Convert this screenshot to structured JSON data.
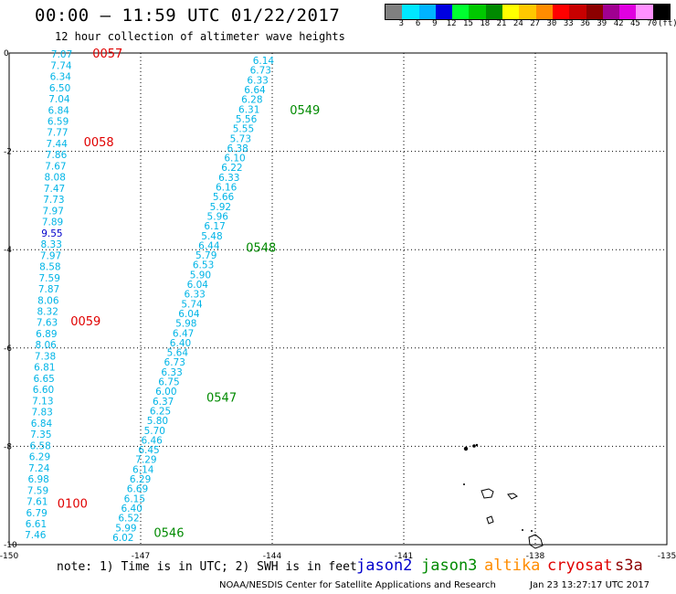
{
  "header": {
    "title": "00:00 – 11:59 UTC 01/22/2017",
    "subtitle": "12 hour collection of altimeter wave heights"
  },
  "color_legend": {
    "colors": [
      "#808080",
      "#00e8ff",
      "#00b4ff",
      "#0000e0",
      "#00ff30",
      "#00c800",
      "#008a00",
      "#ffff00",
      "#ffc800",
      "#ff8c00",
      "#ff0000",
      "#c80000",
      "#8c0000",
      "#a00090",
      "#e000e0",
      "#ff90ff",
      "#000000"
    ],
    "labels": [
      "3",
      "6",
      "9",
      "12",
      "15",
      "18",
      "21",
      "24",
      "27",
      "30",
      "33",
      "36",
      "39",
      "42",
      "45",
      "70",
      "(ft)"
    ]
  },
  "footer": {
    "note": "note: 1) Time is in UTC; 2) SWH is in feet",
    "missions": [
      {
        "name": "jason2",
        "color": "#0000cc"
      },
      {
        "name": "jason3",
        "color": "#008a00"
      },
      {
        "name": "altika",
        "color": "#ff8c00"
      },
      {
        "name": "cryosat",
        "color": "#e00000"
      },
      {
        "name": "s3a",
        "color": "#8c0000"
      }
    ],
    "credit": "NOAA/NESDIS Center for Satellite Applications and Research",
    "timestamp": "Jan 23 13:27:17 UTC 2017"
  },
  "chart_data": {
    "type": "scatter",
    "xlim": [
      -150,
      -135
    ],
    "ylim": [
      -10,
      0
    ],
    "x_ticks": [
      "-150",
      "-147",
      "-144",
      "-141",
      "-138",
      "-135"
    ],
    "y_ticks": [
      "0",
      "-2",
      "-4",
      "-6",
      "-8",
      "-10"
    ],
    "grid": true,
    "tracks": [
      {
        "color": "#00b4e6",
        "start": [
          -148.8,
          -0.02
        ],
        "end": [
          -149.4,
          -9.8
        ],
        "values": [
          "7.07",
          "7.74",
          "6.34",
          "6.50",
          "7.04",
          "6.84",
          "6.59",
          "7.77",
          "7.44",
          "7.86",
          "7.67",
          "8.08",
          "7.47",
          "7.73",
          "7.97",
          "7.89",
          "9.55",
          "8.33",
          "7.97",
          "8.58",
          "7.59",
          "7.87",
          "8.06",
          "8.32",
          "7.63",
          "6.89",
          "8.06",
          "7.38",
          "6.81",
          "6.65",
          "6.60",
          "7.13",
          "7.83",
          "6.84",
          "7.35",
          "6.58",
          "6.29",
          "7.24",
          "6.98",
          "7.59",
          "7.61",
          "6.79",
          "6.61",
          "7.46"
        ],
        "value_colors": {
          "16": "#0000cc"
        },
        "time_labels": [
          {
            "text": "0057",
            "x": -148.1,
            "y": 0.0,
            "color": "#e00000"
          },
          {
            "text": "0058",
            "x": -148.3,
            "y": -1.8,
            "color": "#e00000"
          },
          {
            "text": "0059",
            "x": -148.6,
            "y": -5.45,
            "color": "#e00000"
          },
          {
            "text": "0100",
            "x": -148.9,
            "y": -9.15,
            "color": "#e00000"
          }
        ]
      },
      {
        "color": "#00b4e6",
        "start": [
          -144.2,
          -0.15
        ],
        "end": [
          -147.4,
          -9.85
        ],
        "values": [
          "6.14",
          "6.73",
          "6.33",
          "6.64",
          "6.28",
          "6.31",
          "5.56",
          "5.55",
          "5.73",
          "6.38",
          "6.10",
          "6.22",
          "6.33",
          "6.16",
          "5.66",
          "5.92",
          "5.96",
          "6.17",
          "5.48",
          "6.44",
          "5.79",
          "6.53",
          "5.90",
          "6.04",
          "6.33",
          "5.74",
          "6.04",
          "5.98",
          "6.47",
          "6.40",
          "5.64",
          "6.73",
          "6.33",
          "6.75",
          "6.00",
          "6.37",
          "6.25",
          "5.80",
          "5.70",
          "6.46",
          "6.45",
          "7.29",
          "6.14",
          "6.29",
          "6.69",
          "6.15",
          "6.40",
          "6.52",
          "5.99",
          "6.02"
        ],
        "value_colors": {},
        "time_labels": [
          {
            "text": "0549",
            "x": -143.6,
            "y": -1.15,
            "color": "#008a00"
          },
          {
            "text": "0548",
            "x": -144.6,
            "y": -3.95,
            "color": "#008a00"
          },
          {
            "text": "0547",
            "x": -145.5,
            "y": -7.0,
            "color": "#008a00"
          },
          {
            "text": "0546",
            "x": -146.7,
            "y": -9.75,
            "color": "#008a00"
          }
        ]
      }
    ]
  }
}
